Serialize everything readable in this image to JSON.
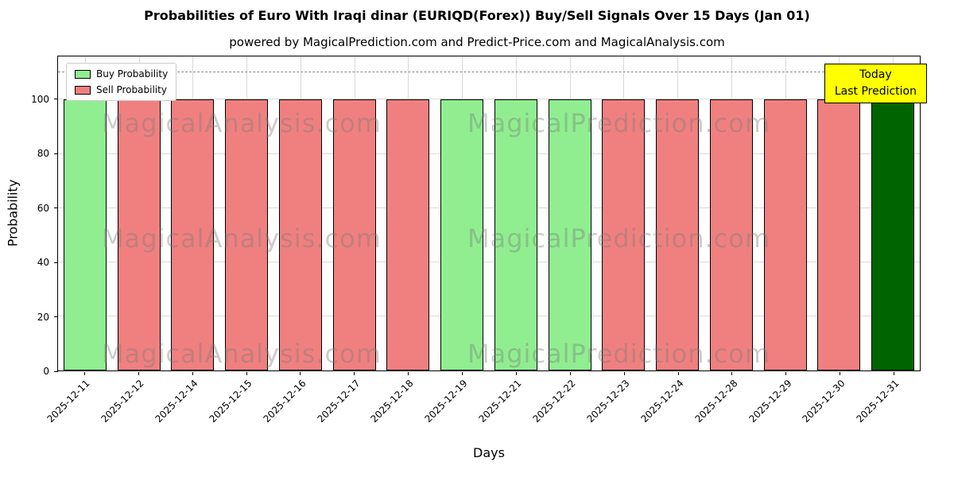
{
  "legend": {
    "buy": "Buy Probability",
    "sell": "Sell Probability"
  },
  "annotation": {
    "line1": "Today",
    "line2": "Last Prediction",
    "bg": "#FFFF00"
  },
  "watermarks": {
    "left": "MagicalAnalysis.com",
    "right": "MagicalPrediction.com"
  },
  "chart_data": {
    "type": "bar",
    "title": "Probabilities of Euro With Iraqi dinar (EURIQD(Forex)) Buy/Sell Signals Over 15 Days (Jan 01)",
    "subtitle": "powered by MagicalPrediction.com and Predict-Price.com and MagicalAnalysis.com",
    "xlabel": "Days",
    "ylabel": "Probability",
    "ylim": [
      0,
      116
    ],
    "yticks": [
      0,
      20,
      40,
      60,
      80,
      100
    ],
    "dashed_line_y": 110,
    "grid": true,
    "legend_position": "upper left",
    "categories": [
      "2025-12-11",
      "2025-12-12",
      "2025-12-14",
      "2025-12-15",
      "2025-12-16",
      "2025-12-17",
      "2025-12-18",
      "2025-12-19",
      "2025-12-21",
      "2025-12-22",
      "2025-12-23",
      "2025-12-24",
      "2025-12-28",
      "2025-12-29",
      "2025-12-30",
      "2025-12-31"
    ],
    "bars": [
      {
        "date": "2025-12-11",
        "value": 100,
        "signal": "buy"
      },
      {
        "date": "2025-12-12",
        "value": 100,
        "signal": "sell"
      },
      {
        "date": "2025-12-14",
        "value": 100,
        "signal": "sell"
      },
      {
        "date": "2025-12-15",
        "value": 100,
        "signal": "sell"
      },
      {
        "date": "2025-12-16",
        "value": 100,
        "signal": "sell"
      },
      {
        "date": "2025-12-17",
        "value": 100,
        "signal": "sell"
      },
      {
        "date": "2025-12-18",
        "value": 100,
        "signal": "sell"
      },
      {
        "date": "2025-12-19",
        "value": 100,
        "signal": "buy"
      },
      {
        "date": "2025-12-21",
        "value": 100,
        "signal": "buy"
      },
      {
        "date": "2025-12-22",
        "value": 100,
        "signal": "buy"
      },
      {
        "date": "2025-12-23",
        "value": 100,
        "signal": "sell"
      },
      {
        "date": "2025-12-24",
        "value": 100,
        "signal": "sell"
      },
      {
        "date": "2025-12-28",
        "value": 100,
        "signal": "sell"
      },
      {
        "date": "2025-12-29",
        "value": 100,
        "signal": "sell"
      },
      {
        "date": "2025-12-30",
        "value": 100,
        "signal": "sell"
      },
      {
        "date": "2025-12-31",
        "value": 100,
        "signal": "today"
      }
    ],
    "colors": {
      "buy": "#90EE90",
      "sell": "#F08080",
      "today": "#006400"
    }
  }
}
